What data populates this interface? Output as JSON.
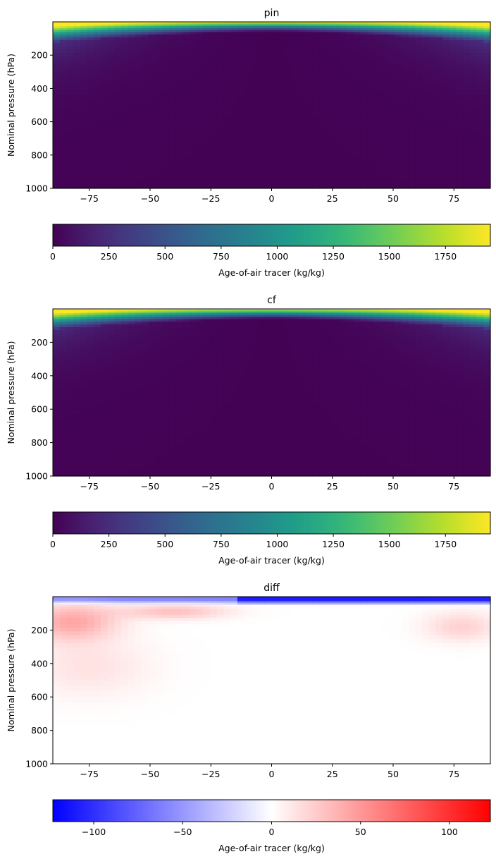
{
  "chart_data": [
    {
      "type": "heatmap",
      "title": "pin",
      "xlabel": "",
      "ylabel": "Nominal pressure (hPa)",
      "xlim": [
        -90,
        90
      ],
      "ylim": [
        1000,
        0
      ],
      "y_inverted": true,
      "xticks": [
        -75,
        -50,
        -25,
        0,
        25,
        50,
        75
      ],
      "yticks": [
        200,
        400,
        600,
        800,
        1000
      ],
      "colormap": "viridis",
      "colorbar": {
        "label": "Age-of-air tracer (kg/kg)",
        "range": [
          0,
          1950
        ],
        "ticks": [
          0,
          250,
          500,
          750,
          1000,
          1250,
          1500,
          1750
        ]
      },
      "field_description_points": [
        {
          "lat": -90,
          "p": 10,
          "value": 1950
        },
        {
          "lat": -90,
          "p": 100,
          "value": 800
        },
        {
          "lat": -90,
          "p": 300,
          "value": 250
        },
        {
          "lat": 0,
          "p": 10,
          "value": 700
        },
        {
          "lat": 0,
          "p": 100,
          "value": 50
        },
        {
          "lat": 90,
          "p": 10,
          "value": 1950
        },
        {
          "lat": 90,
          "p": 100,
          "value": 750
        },
        {
          "lat": 0,
          "p": 800,
          "value": 10
        }
      ]
    },
    {
      "type": "heatmap",
      "title": "cf",
      "xlabel": "",
      "ylabel": "Nominal pressure (hPa)",
      "xlim": [
        -90,
        90
      ],
      "ylim": [
        1000,
        0
      ],
      "y_inverted": true,
      "xticks": [
        -75,
        -50,
        -25,
        0,
        25,
        50,
        75
      ],
      "yticks": [
        200,
        400,
        600,
        800,
        1000
      ],
      "colormap": "viridis",
      "colorbar": {
        "label": "Age-of-air tracer (kg/kg)",
        "range": [
          0,
          1950
        ],
        "ticks": [
          0,
          250,
          500,
          750,
          1000,
          1250,
          1500,
          1750
        ]
      },
      "field_description_points": [
        {
          "lat": -90,
          "p": 10,
          "value": 1950
        },
        {
          "lat": -90,
          "p": 100,
          "value": 760
        },
        {
          "lat": -90,
          "p": 300,
          "value": 220
        },
        {
          "lat": 0,
          "p": 10,
          "value": 700
        },
        {
          "lat": 0,
          "p": 100,
          "value": 40
        },
        {
          "lat": 90,
          "p": 10,
          "value": 1950
        },
        {
          "lat": 90,
          "p": 100,
          "value": 750
        },
        {
          "lat": 0,
          "p": 800,
          "value": 10
        }
      ]
    },
    {
      "type": "heatmap",
      "title": "diff",
      "xlabel": "",
      "ylabel": "Nominal pressure (hPa)",
      "xlim": [
        -90,
        90
      ],
      "ylim": [
        1000,
        0
      ],
      "y_inverted": true,
      "xticks": [
        -75,
        -50,
        -25,
        0,
        25,
        50,
        75
      ],
      "yticks": [
        200,
        400,
        600,
        800,
        1000
      ],
      "colormap": "bwr",
      "colorbar": {
        "label": "Age-of-air tracer (kg/kg)",
        "range": [
          -123,
          123
        ],
        "ticks": [
          -100,
          -50,
          0,
          50,
          100
        ]
      },
      "field_description_points": [
        {
          "lat": -80,
          "p": 30,
          "value": -60
        },
        {
          "lat": 0,
          "p": 20,
          "value": -80
        },
        {
          "lat": 70,
          "p": 30,
          "value": -110
        },
        {
          "lat": -80,
          "p": 150,
          "value": 45
        },
        {
          "lat": -40,
          "p": 80,
          "value": 35
        },
        {
          "lat": -20,
          "p": 50,
          "value": 30
        },
        {
          "lat": 75,
          "p": 200,
          "value": 20
        },
        {
          "lat": -70,
          "p": 400,
          "value": 10
        },
        {
          "lat": 0,
          "p": 800,
          "value": 0
        }
      ]
    }
  ]
}
